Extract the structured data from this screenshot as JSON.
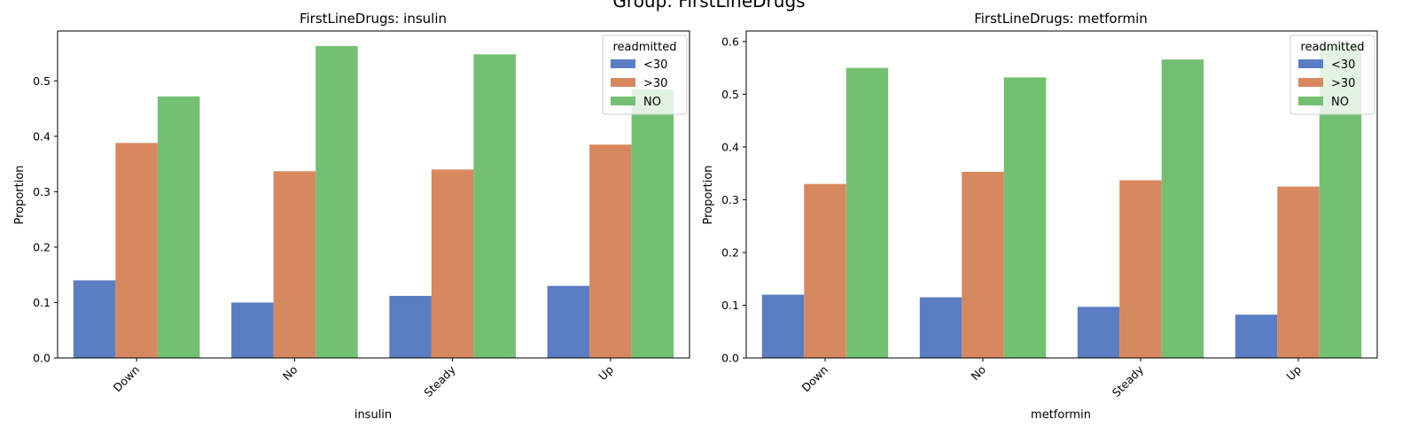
{
  "figure": {
    "suptitle": "Group: FirstLineDrugs"
  },
  "chart_data": [
    {
      "type": "bar",
      "title": "FirstLineDrugs: insulin",
      "xlabel": "insulin",
      "ylabel": "Proportion",
      "categories": [
        "Down",
        "No",
        "Steady",
        "Up"
      ],
      "ylim": [
        0,
        0.59
      ],
      "yticks": [
        "0.0",
        "0.1",
        "0.2",
        "0.3",
        "0.4",
        "0.5"
      ],
      "legend": {
        "title": "readmitted",
        "position": "top-right"
      },
      "series": [
        {
          "name": "<30",
          "color": "#5a7dc4",
          "values": [
            0.14,
            0.1,
            0.112,
            0.13
          ]
        },
        {
          "name": ">30",
          "color": "#d8885e",
          "values": [
            0.388,
            0.337,
            0.34,
            0.385
          ]
        },
        {
          "name": "NO",
          "color": "#74c073",
          "values": [
            0.472,
            0.563,
            0.548,
            0.485
          ]
        }
      ]
    },
    {
      "type": "bar",
      "title": "FirstLineDrugs: metformin",
      "xlabel": "metformin",
      "ylabel": "Proportion",
      "categories": [
        "Down",
        "No",
        "Steady",
        "Up"
      ],
      "ylim": [
        0,
        0.62
      ],
      "yticks": [
        "0.0",
        "0.1",
        "0.2",
        "0.3",
        "0.4",
        "0.5",
        "0.6"
      ],
      "legend": {
        "title": "readmitted",
        "position": "top-right"
      },
      "series": [
        {
          "name": "<30",
          "color": "#5a7dc4",
          "values": [
            0.12,
            0.115,
            0.097,
            0.082
          ]
        },
        {
          "name": ">30",
          "color": "#d8885e",
          "values": [
            0.33,
            0.353,
            0.337,
            0.325
          ]
        },
        {
          "name": "NO",
          "color": "#74c073",
          "values": [
            0.55,
            0.532,
            0.566,
            0.592
          ]
        }
      ]
    }
  ]
}
